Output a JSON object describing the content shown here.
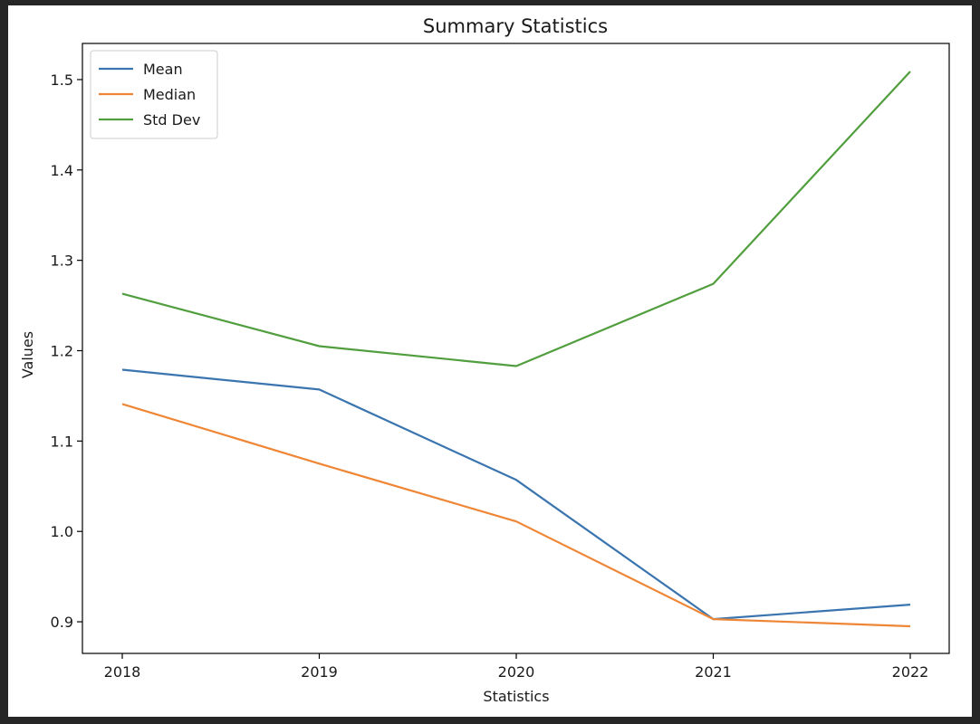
{
  "chart_data": {
    "type": "line",
    "title": "Summary Statistics",
    "xlabel": "Statistics",
    "ylabel": "Values",
    "categories": [
      "2018",
      "2019",
      "2020",
      "2021",
      "2022"
    ],
    "series": [
      {
        "name": "Mean",
        "color": "#3b75af",
        "values": [
          1.179,
          1.157,
          1.057,
          0.903,
          0.919
        ]
      },
      {
        "name": "Median",
        "color": "#ef8636",
        "values": [
          1.141,
          1.075,
          1.011,
          0.903,
          0.895
        ]
      },
      {
        "name": "Std Dev",
        "color": "#519e3e",
        "values": [
          1.263,
          1.205,
          1.183,
          1.274,
          1.509
        ]
      }
    ],
    "ylim": [
      0.865,
      1.54
    ],
    "yticks": [
      0.9,
      1.0,
      1.1,
      1.2,
      1.3,
      1.4,
      1.5
    ],
    "ytick_labels": [
      "0.9",
      "1.0",
      "1.1",
      "1.2",
      "1.3",
      "1.4",
      "1.5"
    ],
    "grid": false,
    "legend_position": "top-left"
  }
}
